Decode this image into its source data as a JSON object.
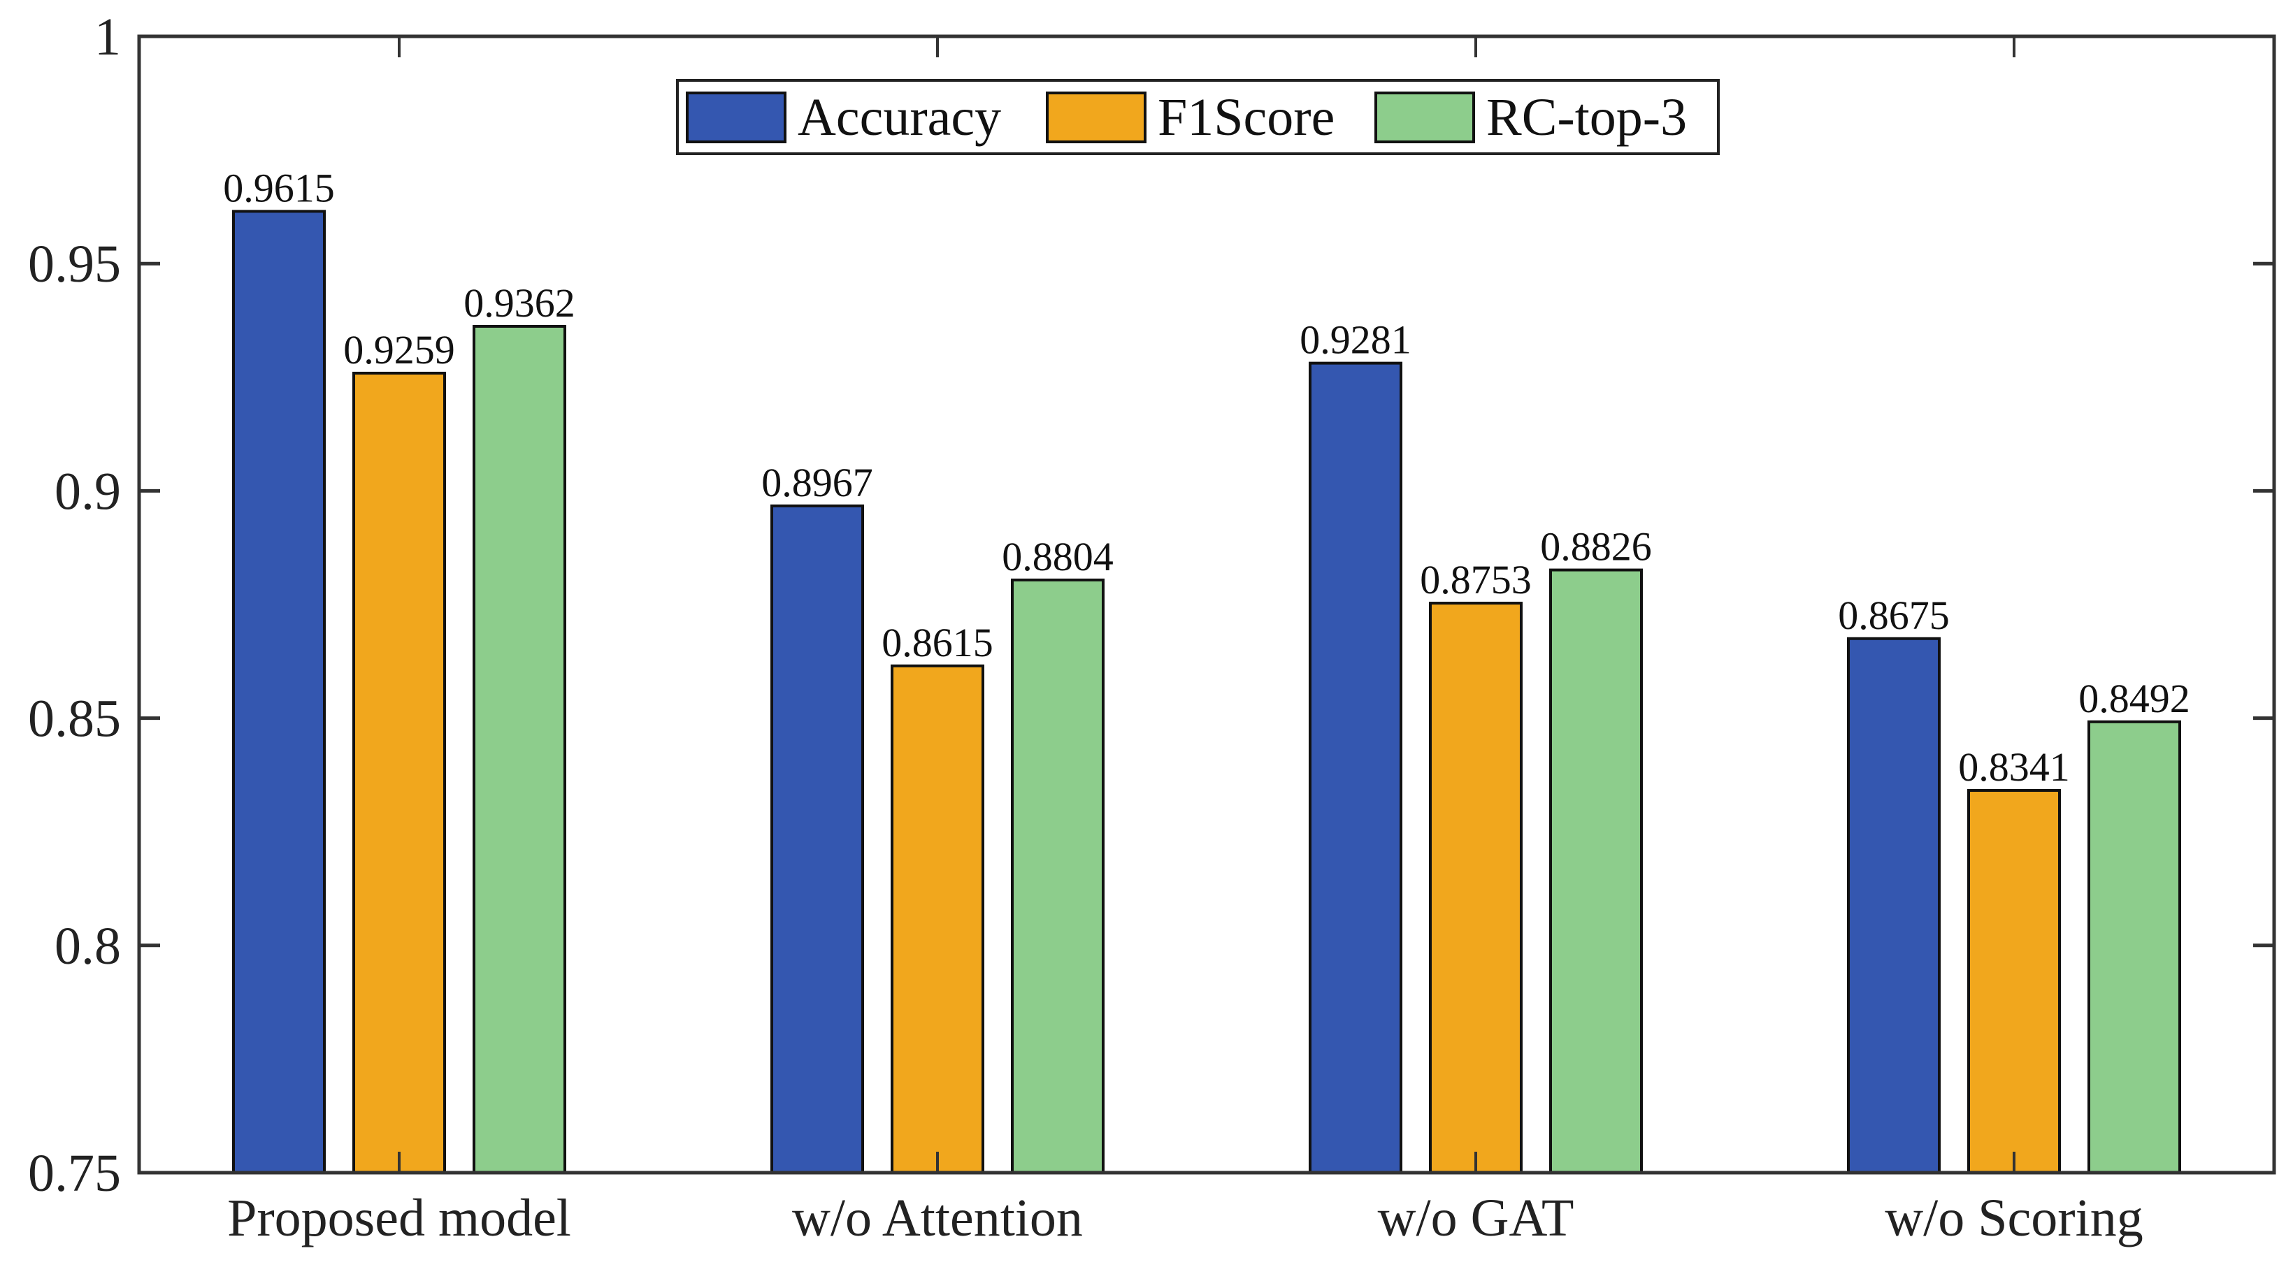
{
  "chart_data": {
    "type": "bar",
    "title": "",
    "xlabel": "",
    "ylabel": "",
    "ylim": [
      0.75,
      1
    ],
    "yticks": [
      "0.75",
      "0.8",
      "0.85",
      "0.9",
      "0.95",
      "1"
    ],
    "ytick_values": [
      0.75,
      0.8,
      0.85,
      0.9,
      0.95,
      1
    ],
    "categories": [
      "Proposed model",
      "w/o Attention",
      "w/o GAT",
      "w/o Scoring"
    ],
    "series": [
      {
        "name": "Accuracy",
        "color": "#3457b0",
        "values": [
          0.9615,
          0.8967,
          0.9281,
          0.8675
        ],
        "labels": [
          "0.9615",
          "0.8967",
          "0.9281",
          "0.8675"
        ]
      },
      {
        "name": "F1Score",
        "color": "#f1a71d",
        "values": [
          0.9259,
          0.8615,
          0.8753,
          0.8341
        ],
        "labels": [
          "0.9259",
          "0.8615",
          "0.8753",
          "0.8341"
        ]
      },
      {
        "name": "RC-top-3",
        "color": "#8dcd8c",
        "values": [
          0.9362,
          0.8804,
          0.8826,
          0.8492
        ],
        "labels": [
          "0.9362",
          "0.8804",
          "0.8826",
          "0.8492"
        ]
      }
    ],
    "legend": "top-center",
    "grid": false
  }
}
